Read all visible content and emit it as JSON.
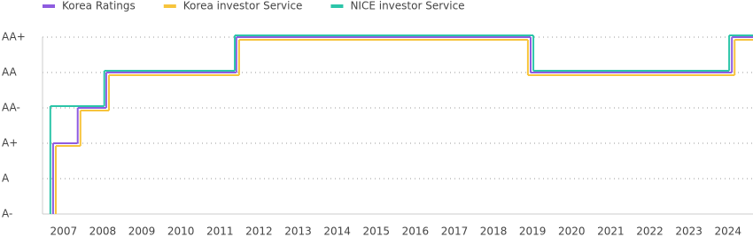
{
  "chart_data": {
    "type": "step",
    "legend": "top-left",
    "grid": true,
    "xlim": [
      2006.46,
      2024.64
    ],
    "xticks": [
      2007,
      2008,
      2009,
      2010,
      2011,
      2012,
      2013,
      2014,
      2015,
      2016,
      2017,
      2018,
      2019,
      2020,
      2021,
      2022,
      2023,
      2024
    ],
    "ylim": [
      0,
      5
    ],
    "yticks": [
      {
        "value": 0,
        "label": "A-"
      },
      {
        "value": 1,
        "label": "A"
      },
      {
        "value": 2,
        "label": "A+"
      },
      {
        "value": 3,
        "label": "AA-"
      },
      {
        "value": 4,
        "label": "AA"
      },
      {
        "value": 5,
        "label": "AA+"
      }
    ],
    "series": [
      {
        "name": "Korea Ratings",
        "color": "#8e5ce0",
        "x": [
          2006.73,
          2007.36,
          2008.09,
          2011.42,
          2018.95,
          2024.1
        ],
        "values": [
          2,
          3,
          4,
          5,
          4,
          5
        ]
      },
      {
        "name": "Korea investor Service",
        "color": "#f7c43c",
        "x": [
          2006.8,
          2007.43,
          2008.16,
          2011.49,
          2018.88,
          2024.17
        ],
        "values": [
          2,
          3,
          4,
          5,
          4,
          5
        ]
      },
      {
        "name": "NICE investor Service",
        "color": "#2cc5a9",
        "x": [
          2006.66,
          2008.04,
          2011.38,
          2019.02,
          2024.03
        ],
        "values": [
          3,
          4,
          5,
          4,
          5
        ]
      }
    ]
  }
}
